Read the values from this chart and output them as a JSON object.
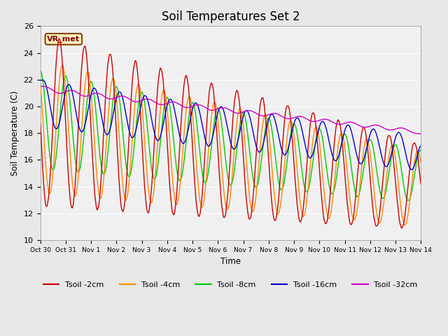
{
  "title": "Soil Temperatures Set 2",
  "xlabel": "Time",
  "ylabel": "Soil Temperature (C)",
  "ylim": [
    10,
    26
  ],
  "bg_color": "#e8e8e8",
  "plot_bg_color": "#f0f0f0",
  "legend_label": "VR_met",
  "series_colors": {
    "Tsoil -2cm": "#cc0000",
    "Tsoil -4cm": "#ff8800",
    "Tsoil -8cm": "#00cc00",
    "Tsoil -16cm": "#0000cc",
    "Tsoil -32cm": "#cc00cc"
  },
  "xtick_labels": [
    "Oct 30",
    "Oct 31",
    "Nov 1",
    "Nov 2",
    "Nov 3",
    "Nov 4",
    "Nov 5",
    "Nov 6",
    "Nov 7",
    "Nov 8",
    "Nov 9",
    "Nov 10",
    "Nov 11",
    "Nov 12",
    "Nov 13",
    "Nov 14"
  ],
  "line_width": 1.0
}
